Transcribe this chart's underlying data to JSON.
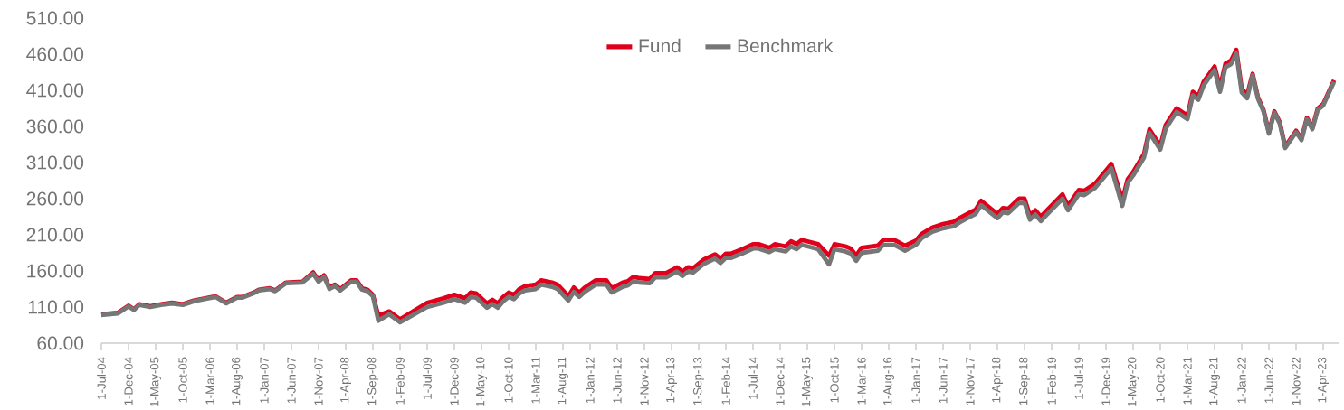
{
  "chart_data": {
    "type": "line",
    "x": [
      "2004-07",
      "2004-10",
      "2004-12",
      "2005-01",
      "2005-02",
      "2005-04",
      "2005-06",
      "2005-08",
      "2005-10",
      "2005-12",
      "2006-02",
      "2006-04",
      "2006-06",
      "2006-08",
      "2006-09",
      "2006-11",
      "2006-12",
      "2007-02",
      "2007-03",
      "2007-05",
      "2007-08",
      "2007-10",
      "2007-11",
      "2007-12",
      "2008-01",
      "2008-02",
      "2008-03",
      "2008-05",
      "2008-06",
      "2008-07",
      "2008-08",
      "2008-09",
      "2008-10",
      "2008-12",
      "2009-02",
      "2009-07",
      "2009-10",
      "2009-12",
      "2010-02",
      "2010-03",
      "2010-04",
      "2010-06",
      "2010-07",
      "2010-08",
      "2010-09",
      "2010-10",
      "2010-11",
      "2010-12",
      "2011-01",
      "2011-03",
      "2011-04",
      "2011-06",
      "2011-07",
      "2011-09",
      "2011-10",
      "2011-11",
      "2011-12",
      "2012-02",
      "2012-04",
      "2012-05",
      "2012-07",
      "2012-08",
      "2012-09",
      "2012-10",
      "2012-12",
      "2013-01",
      "2013-03",
      "2013-05",
      "2013-06",
      "2013-07",
      "2013-08",
      "2013-10",
      "2013-12",
      "2014-01",
      "2014-02",
      "2014-03",
      "2014-05",
      "2014-07",
      "2014-08",
      "2014-10",
      "2014-11",
      "2015-01",
      "2015-02",
      "2015-03",
      "2015-04",
      "2015-05",
      "2015-07",
      "2015-09",
      "2015-10",
      "2015-12",
      "2016-01",
      "2016-02",
      "2016-03",
      "2016-06",
      "2016-07",
      "2016-09",
      "2016-11",
      "2017-01",
      "2017-02",
      "2017-04",
      "2017-06",
      "2017-08",
      "2017-09",
      "2017-11",
      "2017-12",
      "2018-01",
      "2018-04",
      "2018-05",
      "2018-06",
      "2018-08",
      "2018-09",
      "2018-10",
      "2018-11",
      "2018-12",
      "2019-01",
      "2019-04",
      "2019-05",
      "2019-07",
      "2019-08",
      "2019-10",
      "2020-01",
      "2020-03",
      "2020-04",
      "2020-05",
      "2020-07",
      "2020-08",
      "2020-10",
      "2020-11",
      "2021-01",
      "2021-03",
      "2021-04",
      "2021-05",
      "2021-06",
      "2021-08",
      "2021-09",
      "2021-10",
      "2021-11",
      "2021-12",
      "2022-01",
      "2022-02",
      "2022-03",
      "2022-04",
      "2022-05",
      "2022-06",
      "2022-07",
      "2022-08",
      "2022-09",
      "2022-11",
      "2022-12",
      "2023-01",
      "2023-02",
      "2023-03",
      "2023-04",
      "2023-06"
    ],
    "series": [
      {
        "name": "Fund",
        "color": "#e0001b",
        "values": [
          100,
          102,
          112,
          107,
          114,
          111,
          114,
          116,
          114,
          119,
          122,
          125,
          116,
          124,
          124,
          130,
          134,
          136,
          133,
          144,
          145,
          158,
          147,
          154,
          137,
          141,
          135,
          147,
          147,
          136,
          134,
          127,
          98,
          104,
          93,
          116,
          122,
          127,
          122,
          130,
          129,
          115,
          120,
          115,
          124,
          130,
          127,
          135,
          139,
          141,
          147,
          144,
          141,
          125,
          137,
          130,
          137,
          147,
          147,
          136,
          144,
          146,
          152,
          150,
          149,
          157,
          157,
          165,
          159,
          165,
          164,
          176,
          183,
          177,
          184,
          184,
          190,
          197,
          197,
          192,
          197,
          194,
          201,
          197,
          203,
          201,
          197,
          181,
          197,
          194,
          191,
          181,
          192,
          195,
          203,
          203,
          195,
          202,
          211,
          220,
          225,
          228,
          233,
          241,
          245,
          257,
          239,
          247,
          246,
          260,
          260,
          237,
          244,
          235,
          243,
          266,
          250,
          272,
          271,
          281,
          308,
          258,
          287,
          297,
          322,
          356,
          333,
          362,
          385,
          375,
          408,
          402,
          422,
          443,
          414,
          447,
          451,
          466,
          412,
          404,
          433,
          400,
          383,
          352,
          381,
          366,
          332,
          354,
          343,
          372,
          358,
          385,
          391,
          424
        ]
      },
      {
        "name": "Benchmark",
        "color": "#767676",
        "values": [
          99,
          101,
          111,
          106,
          113,
          110,
          113,
          115,
          113,
          118,
          121,
          124,
          115,
          123,
          123,
          129,
          133,
          135,
          132,
          143,
          144,
          156,
          145,
          152,
          135,
          139,
          133,
          145,
          145,
          134,
          132,
          125,
          91,
          100,
          89,
          110,
          116,
          121,
          116,
          124,
          123,
          109,
          114,
          109,
          118,
          124,
          121,
          129,
          133,
          135,
          141,
          138,
          135,
          119,
          131,
          124,
          131,
          141,
          141,
          130,
          138,
          140,
          146,
          144,
          143,
          151,
          151,
          159,
          153,
          159,
          158,
          170,
          177,
          171,
          178,
          178,
          184,
          191,
          191,
          186,
          190,
          187,
          194,
          190,
          196,
          194,
          190,
          169,
          190,
          187,
          184,
          174,
          185,
          188,
          196,
          196,
          188,
          196,
          205,
          214,
          219,
          222,
          227,
          235,
          239,
          251,
          233,
          241,
          240,
          254,
          254,
          231,
          238,
          229,
          237,
          260,
          244,
          266,
          265,
          275,
          302,
          250,
          282,
          292,
          317,
          351,
          328,
          357,
          380,
          370,
          403,
          397,
          417,
          438,
          408,
          442,
          446,
          461,
          407,
          399,
          431,
          398,
          381,
          350,
          379,
          364,
          330,
          352,
          341,
          370,
          356,
          383,
          389,
          422
        ]
      }
    ],
    "xlim": [
      "2004-07",
      "2023-07"
    ],
    "xticks": [
      {
        "value": "2004-07",
        "label": "1-Jul-04"
      },
      {
        "value": "2004-12",
        "label": "1-Dec-04"
      },
      {
        "value": "2005-05",
        "label": "1-May-05"
      },
      {
        "value": "2005-10",
        "label": "1-Oct-05"
      },
      {
        "value": "2006-03",
        "label": "1-Mar-06"
      },
      {
        "value": "2006-08",
        "label": "1-Aug-06"
      },
      {
        "value": "2007-01",
        "label": "1-Jan-07"
      },
      {
        "value": "2007-06",
        "label": "1-Jun-07"
      },
      {
        "value": "2007-11",
        "label": "1-Nov-07"
      },
      {
        "value": "2008-04",
        "label": "1-Apr-08"
      },
      {
        "value": "2008-09",
        "label": "1-Sep-08"
      },
      {
        "value": "2009-02",
        "label": "1-Feb-09"
      },
      {
        "value": "2009-07",
        "label": "1-Jul-09"
      },
      {
        "value": "2009-12",
        "label": "1-Dec-09"
      },
      {
        "value": "2010-05",
        "label": "1-May-10"
      },
      {
        "value": "2010-10",
        "label": "1-Oct-10"
      },
      {
        "value": "2011-03",
        "label": "1-Mar-11"
      },
      {
        "value": "2011-08",
        "label": "1-Aug-11"
      },
      {
        "value": "2012-01",
        "label": "1-Jan-12"
      },
      {
        "value": "2012-06",
        "label": "1-Jun-12"
      },
      {
        "value": "2012-11",
        "label": "1-Nov-12"
      },
      {
        "value": "2013-04",
        "label": "1-Apr-13"
      },
      {
        "value": "2013-09",
        "label": "1-Sep-13"
      },
      {
        "value": "2014-02",
        "label": "1-Feb-14"
      },
      {
        "value": "2014-07",
        "label": "1-Jul-14"
      },
      {
        "value": "2014-12",
        "label": "1-Dec-14"
      },
      {
        "value": "2015-05",
        "label": "1-May-15"
      },
      {
        "value": "2015-10",
        "label": "1-Oct-15"
      },
      {
        "value": "2016-03",
        "label": "1-Mar-16"
      },
      {
        "value": "2016-08",
        "label": "1-Aug-16"
      },
      {
        "value": "2017-01",
        "label": "1-Jan-17"
      },
      {
        "value": "2017-06",
        "label": "1-Jun-17"
      },
      {
        "value": "2017-11",
        "label": "1-Nov-17"
      },
      {
        "value": "2018-04",
        "label": "1-Apr-18"
      },
      {
        "value": "2018-09",
        "label": "1-Sep-18"
      },
      {
        "value": "2019-02",
        "label": "1-Feb-19"
      },
      {
        "value": "2019-07",
        "label": "1-Jul-19"
      },
      {
        "value": "2019-12",
        "label": "1-Dec-19"
      },
      {
        "value": "2020-05",
        "label": "1-May-20"
      },
      {
        "value": "2020-10",
        "label": "1-Oct-20"
      },
      {
        "value": "2021-03",
        "label": "1-Mar-21"
      },
      {
        "value": "2021-08",
        "label": "1-Aug-21"
      },
      {
        "value": "2022-01",
        "label": "1-Jan-22"
      },
      {
        "value": "2022-06",
        "label": "1-Jun-22"
      },
      {
        "value": "2022-11",
        "label": "1-Nov-22"
      },
      {
        "value": "2023-04",
        "label": "1-Apr-23"
      }
    ],
    "ylim": [
      60,
      510
    ],
    "yticks": [
      {
        "value": 60,
        "label": "60.00"
      },
      {
        "value": 110,
        "label": "110.00"
      },
      {
        "value": 160,
        "label": "160.00"
      },
      {
        "value": 210,
        "label": "210.00"
      },
      {
        "value": 260,
        "label": "260.00"
      },
      {
        "value": 310,
        "label": "310.00"
      },
      {
        "value": 360,
        "label": "360.00"
      },
      {
        "value": 410,
        "label": "410.00"
      },
      {
        "value": 460,
        "label": "460.00"
      },
      {
        "value": 510,
        "label": "510.00"
      }
    ],
    "legend": "top"
  }
}
